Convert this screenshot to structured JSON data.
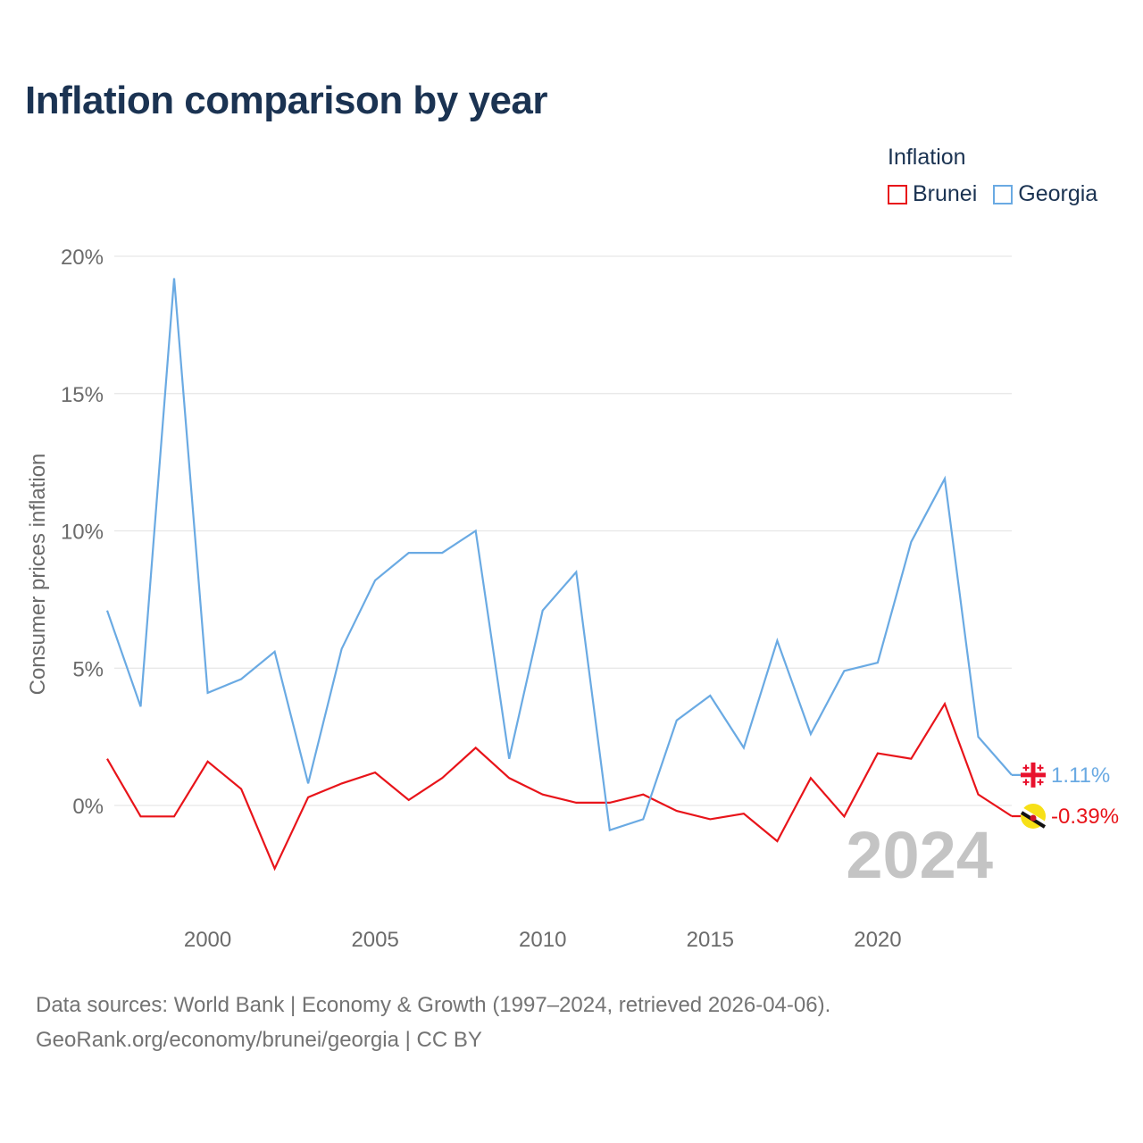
{
  "title": "Inflation comparison by year",
  "legend": {
    "title": "Inflation",
    "items": [
      {
        "label": "Brunei",
        "color": "#e8141a"
      },
      {
        "label": "Georgia",
        "color": "#6aaae3"
      }
    ]
  },
  "sources": {
    "line1": "Data sources: World Bank | Economy & Growth (1997–2024, retrieved 2026-04-06).",
    "line2": "GeoRank.org/economy/brunei/georgia | CC BY"
  },
  "chart_data": {
    "type": "line",
    "title": "Inflation comparison by year",
    "xlabel": "",
    "ylabel": "Consumer prices inflation",
    "year_watermark": "2024",
    "x": [
      1997,
      1998,
      1999,
      2000,
      2001,
      2002,
      2003,
      2004,
      2005,
      2006,
      2007,
      2008,
      2009,
      2010,
      2011,
      2012,
      2013,
      2014,
      2015,
      2016,
      2017,
      2018,
      2019,
      2020,
      2021,
      2022,
      2023,
      2024
    ],
    "xlim": [
      1997,
      2024
    ],
    "ylim": [
      -4,
      21
    ],
    "xticks": [
      {
        "value": 2000,
        "label": "2000"
      },
      {
        "value": 2005,
        "label": "2005"
      },
      {
        "value": 2010,
        "label": "2010"
      },
      {
        "value": 2015,
        "label": "2015"
      },
      {
        "value": 2020,
        "label": "2020"
      }
    ],
    "yticks": [
      {
        "value": 0,
        "label": "0%"
      },
      {
        "value": 5,
        "label": "5%"
      },
      {
        "value": 10,
        "label": "10%"
      },
      {
        "value": 15,
        "label": "15%"
      },
      {
        "value": 20,
        "label": "20%"
      }
    ],
    "grid": true,
    "legend_position": "top-right",
    "series": [
      {
        "name": "Brunei",
        "color": "#e8141a",
        "flag": "brunei-flag-icon",
        "end_label": "-0.39%",
        "values": [
          1.7,
          -0.4,
          -0.4,
          1.6,
          0.6,
          -2.3,
          0.3,
          0.8,
          1.2,
          0.2,
          1.0,
          2.1,
          1.0,
          0.4,
          0.1,
          0.1,
          0.4,
          -0.2,
          -0.5,
          -0.3,
          -1.3,
          1.0,
          -0.4,
          1.9,
          1.7,
          3.7,
          0.4,
          -0.39
        ]
      },
      {
        "name": "Georgia",
        "color": "#6aaae3",
        "flag": "georgia-flag-icon",
        "end_label": "1.11%",
        "values": [
          7.1,
          3.6,
          19.2,
          4.1,
          4.6,
          5.6,
          0.8,
          5.7,
          8.2,
          9.2,
          9.2,
          10.0,
          1.7,
          7.1,
          8.5,
          -0.9,
          -0.5,
          3.1,
          4.0,
          2.1,
          6.0,
          2.6,
          4.9,
          5.2,
          9.6,
          11.9,
          2.5,
          1.11
        ]
      }
    ]
  }
}
